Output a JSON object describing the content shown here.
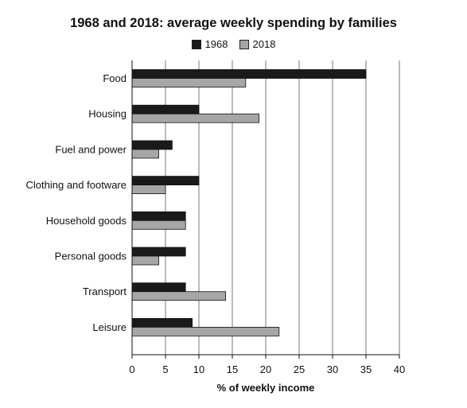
{
  "chart_data": {
    "type": "bar",
    "orientation": "horizontal",
    "title": "1968 and 2018: average weekly spending by families",
    "xlabel": "% of weekly income",
    "ylabel": "",
    "categories": [
      "Food",
      "Housing",
      "Fuel and power",
      "Clothing and footware",
      "Household goods",
      "Personal goods",
      "Transport",
      "Leisure"
    ],
    "series": [
      {
        "name": "1968",
        "color": "#1a1a1a",
        "values": [
          35,
          10,
          6,
          10,
          8,
          8,
          8,
          9
        ]
      },
      {
        "name": "2018",
        "color": "#a6a6a6",
        "values": [
          17,
          19,
          4,
          5,
          8,
          4,
          14,
          22
        ]
      }
    ],
    "xlim": [
      0,
      40
    ],
    "xticks": [
      0,
      5,
      10,
      15,
      20,
      25,
      30,
      35,
      40
    ],
    "grid": true,
    "legend_position": "top"
  }
}
